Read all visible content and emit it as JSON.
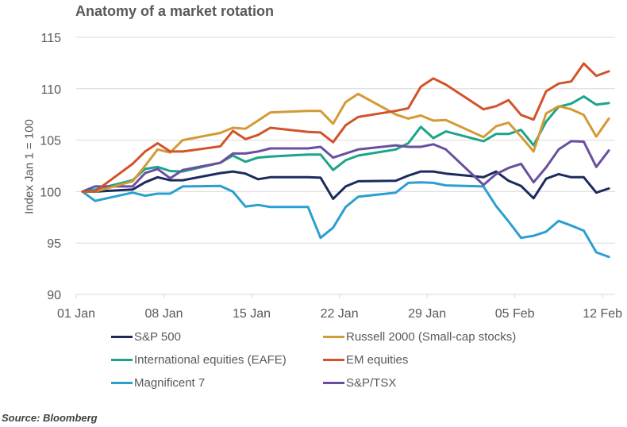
{
  "chart_data": {
    "type": "line",
    "title": "Anatomy of a market rotation",
    "xlabel": "",
    "ylabel": "Index  Jan 1 = 100",
    "ylim": [
      90,
      115
    ],
    "yticks": [
      90,
      95,
      100,
      105,
      110,
      115
    ],
    "ytick_labels": [
      "90",
      "95",
      "100",
      "105",
      "110",
      "115"
    ],
    "xlim_days": [
      0,
      42
    ],
    "xticks_days": [
      0,
      7,
      14,
      21,
      28,
      35,
      42
    ],
    "xtick_labels": [
      "01 Jan",
      "08 Jan",
      "15 Jan",
      "22 Jan",
      "29 Jan",
      "05 Feb",
      "12 Feb"
    ],
    "grid": "horizontal",
    "legend_position": "bottom",
    "dates": [
      "01 Jan",
      "02 Jan",
      "05 Jan",
      "06 Jan",
      "07 Jan",
      "08 Jan",
      "09 Jan",
      "12 Jan",
      "13 Jan",
      "14 Jan",
      "15 Jan",
      "16 Jan",
      "19 Jan",
      "20 Jan",
      "21 Jan",
      "22 Jan",
      "23 Jan",
      "26 Jan",
      "27 Jan",
      "28 Jan",
      "29 Jan",
      "30 Jan",
      "02 Feb",
      "03 Feb",
      "04 Feb",
      "05 Feb",
      "06 Feb",
      "07 Feb",
      "08 Feb",
      "09 Feb",
      "10 Feb",
      "11 Feb",
      "12 Feb"
    ],
    "x_days": [
      0,
      1,
      4,
      5,
      6,
      7,
      8,
      11,
      12,
      13,
      14,
      15,
      18,
      19,
      20,
      21,
      22,
      25,
      26,
      27,
      28,
      29,
      32,
      33,
      34,
      35,
      36,
      37,
      38,
      39,
      40,
      41,
      42
    ],
    "series": [
      {
        "name": "S&P 500",
        "color": "#1c2b5e",
        "values": [
          100,
          100,
          100.2,
          100.9,
          101.4,
          101.1,
          101.1,
          101.8,
          101.95,
          101.75,
          101.2,
          101.4,
          101.4,
          101.35,
          99.3,
          100.5,
          101.0,
          101.05,
          101.55,
          101.95,
          101.95,
          101.75,
          101.4,
          101.95,
          101.05,
          100.55,
          99.35,
          101.25,
          101.7,
          101.4,
          101.4,
          99.9,
          100.3
        ]
      },
      {
        "name": "Russell 2000 (Small-cap stocks)",
        "color": "#d39a35",
        "values": [
          100,
          100,
          101.0,
          102.5,
          104.1,
          103.8,
          105.0,
          105.7,
          106.2,
          106.1,
          106.9,
          107.7,
          107.85,
          107.85,
          106.6,
          108.7,
          109.5,
          107.5,
          107.1,
          107.4,
          106.9,
          106.95,
          105.3,
          106.35,
          106.7,
          105.35,
          103.9,
          107.6,
          108.3,
          108.0,
          107.45,
          105.35,
          107.1
        ]
      },
      {
        "name": "International equities (EAFE)",
        "color": "#1aa58a",
        "values": [
          100,
          100.2,
          101.1,
          102.2,
          102.4,
          102.0,
          101.95,
          102.8,
          103.5,
          102.9,
          103.3,
          103.4,
          103.6,
          103.6,
          102.1,
          103.05,
          103.5,
          104.1,
          104.7,
          106.3,
          105.2,
          105.85,
          104.9,
          105.6,
          105.6,
          106.0,
          104.5,
          106.8,
          108.25,
          108.55,
          109.25,
          108.45,
          108.6
        ]
      },
      {
        "name": "EM equities",
        "color": "#d2532a",
        "values": [
          100,
          100,
          102.7,
          103.9,
          104.7,
          103.9,
          103.9,
          104.4,
          105.9,
          105.1,
          105.5,
          106.2,
          105.8,
          105.75,
          104.8,
          106.45,
          107.25,
          107.85,
          108.1,
          110.2,
          111.0,
          110.4,
          108.0,
          108.3,
          108.9,
          107.45,
          107.0,
          109.75,
          110.5,
          110.7,
          112.45,
          111.25,
          111.7
        ]
      },
      {
        "name": "Magnificent 7",
        "color": "#2b9fd0",
        "values": [
          100,
          99.1,
          99.9,
          99.6,
          99.8,
          99.8,
          100.5,
          100.55,
          100.0,
          98.55,
          98.7,
          98.5,
          98.5,
          95.5,
          96.5,
          98.5,
          99.5,
          99.9,
          100.85,
          100.9,
          100.85,
          100.6,
          100.5,
          98.6,
          97.1,
          95.5,
          95.7,
          96.1,
          97.15,
          96.7,
          96.2,
          94.1,
          93.65
        ]
      },
      {
        "name": "S&P/TSX",
        "color": "#6a4fa0",
        "values": [
          100,
          100.5,
          100.5,
          101.8,
          102.2,
          101.3,
          102.1,
          102.8,
          103.7,
          103.7,
          103.9,
          104.2,
          104.2,
          104.35,
          103.3,
          103.7,
          104.1,
          104.5,
          104.35,
          104.35,
          104.6,
          104.1,
          100.65,
          101.7,
          102.3,
          102.7,
          100.9,
          102.35,
          104.1,
          104.9,
          104.85,
          102.4,
          104.0
        ]
      }
    ]
  },
  "legend": [
    {
      "label": "S&P 500",
      "color": "#1c2b5e"
    },
    {
      "label": "Russell 2000 (Small-cap stocks)",
      "color": "#d39a35"
    },
    {
      "label": "International equities (EAFE)",
      "color": "#1aa58a"
    },
    {
      "label": "EM equities",
      "color": "#d2532a"
    },
    {
      "label": "Magnificent 7",
      "color": "#2b9fd0"
    },
    {
      "label": "S&P/TSX",
      "color": "#6a4fa0"
    }
  ],
  "source": "Source: Bloomberg"
}
